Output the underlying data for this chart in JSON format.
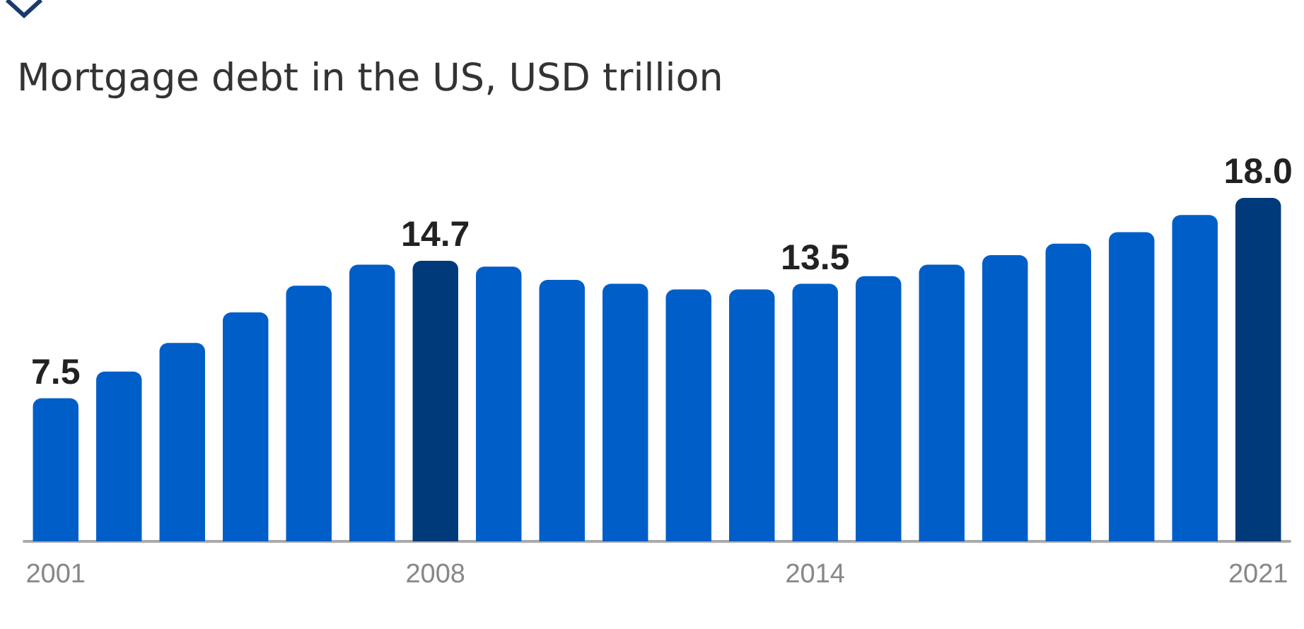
{
  "chart_data": {
    "type": "bar",
    "title": "Mortgage debt in the US, USD trillion",
    "categories": [
      "2001",
      null,
      null,
      null,
      null,
      null,
      "2008",
      null,
      null,
      null,
      null,
      null,
      "2014",
      null,
      null,
      null,
      null,
      null,
      null,
      "2021"
    ],
    "values": [
      7.5,
      8.9,
      10.4,
      12.0,
      13.4,
      14.5,
      14.7,
      14.4,
      13.7,
      13.5,
      13.2,
      13.2,
      13.5,
      13.9,
      14.5,
      15.0,
      15.6,
      16.2,
      17.1,
      18.0
    ],
    "value_labels": [
      "7.5",
      null,
      null,
      null,
      null,
      null,
      "14.7",
      null,
      null,
      null,
      null,
      null,
      "13.5",
      null,
      null,
      null,
      null,
      null,
      null,
      "18.0"
    ],
    "colors": [
      "#005ec8",
      "#005ec8",
      "#005ec8",
      "#005ec8",
      "#005ec8",
      "#005ec8",
      "#003a7a",
      "#005ec8",
      "#005ec8",
      "#005ec8",
      "#005ec8",
      "#005ec8",
      "#005ec8",
      "#005ec8",
      "#005ec8",
      "#005ec8",
      "#005ec8",
      "#005ec8",
      "#005ec8",
      "#003a7a"
    ],
    "grid": false
  }
}
